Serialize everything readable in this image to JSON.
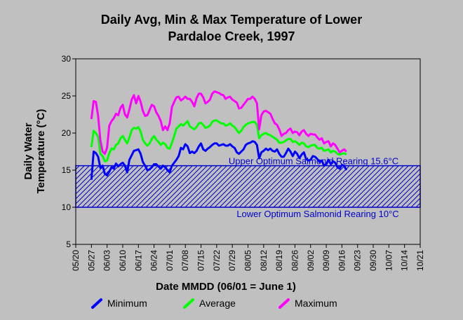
{
  "chart_data": {
    "type": "line",
    "title_line1": "Daily Avg, Min & Max Temperature of Lower",
    "title_line2": "Pardaloe Creek, 1997",
    "xlabel": "Date MMDD (06/01 = June 1)",
    "ylabel_line1": "Daily Water",
    "ylabel_line2": "Temperature (°C)",
    "ylim": [
      5,
      30
    ],
    "yticks": [
      5,
      10,
      15,
      20,
      25,
      30
    ],
    "x_range": [
      "05/20",
      "10/21"
    ],
    "xtick_labels": [
      "05/20",
      "05/27",
      "06/03",
      "06/10",
      "06/17",
      "06/24",
      "07/01",
      "07/08",
      "07/15",
      "07/22",
      "07/29",
      "08/05",
      "08/12",
      "08/19",
      "08/26",
      "09/02",
      "09/09",
      "09/16",
      "09/23",
      "09/30",
      "10/07",
      "10/14",
      "10/21"
    ],
    "grid": false,
    "band": {
      "lower": 10,
      "upper": 15.6,
      "upper_label": "Upper Optimum Salmonid Rearing 15.6°C",
      "lower_label": "Lower Optimum Salmonid Rearing 10°C",
      "color": "#0000cc"
    },
    "x": [
      "05/27",
      "05/28",
      "05/29",
      "05/30",
      "05/31",
      "06/01",
      "06/02",
      "06/03",
      "06/04",
      "06/05",
      "06/06",
      "06/07",
      "06/08",
      "06/09",
      "06/10",
      "06/11",
      "06/12",
      "06/13",
      "06/14",
      "06/15",
      "06/16",
      "06/17",
      "06/18",
      "06/19",
      "06/20",
      "06/21",
      "06/22",
      "06/23",
      "06/24",
      "06/25",
      "06/26",
      "06/27",
      "06/28",
      "06/29",
      "06/30",
      "07/01",
      "07/02",
      "07/03",
      "07/04",
      "07/05",
      "07/06",
      "07/07",
      "07/08",
      "07/09",
      "07/10",
      "07/11",
      "07/12",
      "07/13",
      "07/14",
      "07/15",
      "07/16",
      "07/17",
      "07/18",
      "07/19",
      "07/20",
      "07/21",
      "07/22",
      "07/23",
      "07/24",
      "07/25",
      "07/26",
      "07/27",
      "07/28",
      "07/29",
      "07/30",
      "07/31",
      "08/01",
      "08/02",
      "08/03",
      "08/04",
      "08/05",
      "08/06",
      "08/07",
      "08/08",
      "08/09",
      "08/10",
      "08/11",
      "08/12",
      "08/13",
      "08/14",
      "08/15",
      "08/16",
      "08/17",
      "08/18",
      "08/19",
      "08/20",
      "08/21",
      "08/22",
      "08/23",
      "08/24",
      "08/25",
      "08/26",
      "08/27",
      "08/28",
      "08/29",
      "08/30",
      "08/31",
      "09/01",
      "09/02",
      "09/03",
      "09/04",
      "09/05",
      "09/06",
      "09/07",
      "09/08",
      "09/09",
      "09/10",
      "09/11",
      "09/12",
      "09/13",
      "09/14",
      "09/15",
      "09/16",
      "09/17",
      "09/18"
    ],
    "series": [
      {
        "name": "Minimum",
        "color": "#0000ff",
        "values": [
          13.7,
          17.5,
          17.3,
          16.8,
          15.3,
          15.6,
          14.5,
          14.3,
          14.8,
          15.4,
          15.2,
          15.9,
          15.5,
          15.8,
          16.0,
          15.6,
          14.7,
          16.4,
          17.0,
          17.6,
          17.7,
          17.8,
          17.2,
          16.1,
          15.6,
          15.0,
          15.1,
          15.4,
          15.8,
          15.8,
          15.5,
          15.2,
          15.6,
          15.4,
          15.0,
          14.7,
          15.6,
          16.0,
          16.4,
          16.9,
          18.0,
          17.8,
          18.5,
          18.2,
          17.3,
          17.5,
          17.3,
          17.6,
          18.2,
          18.6,
          17.8,
          17.6,
          17.9,
          18.1,
          18.4,
          18.6,
          18.6,
          18.3,
          18.4,
          18.5,
          18.3,
          18.3,
          18.5,
          18.2,
          18.0,
          17.4,
          17.2,
          17.5,
          17.8,
          18.4,
          18.6,
          18.7,
          18.9,
          18.8,
          18.4,
          16.6,
          17.4,
          17.6,
          17.9,
          17.7,
          17.9,
          17.6,
          17.5,
          17.8,
          17.2,
          16.8,
          16.8,
          17.3,
          17.9,
          17.5,
          16.9,
          17.5,
          17.2,
          16.6,
          17.1,
          17.4,
          16.5,
          16.3,
          16.4,
          16.9,
          16.8,
          16.5,
          16.1,
          16.3,
          15.6,
          15.8,
          16.4,
          15.8,
          16.2,
          16.0,
          15.4,
          15.2,
          15.7,
          15.6,
          15.0
        ]
      },
      {
        "name": "Average",
        "color": "#00ff00",
        "values": [
          18.1,
          20.3,
          20.0,
          19.5,
          17.2,
          16.9,
          16.2,
          16.3,
          17.3,
          17.9,
          17.8,
          18.4,
          18.6,
          19.3,
          19.6,
          19.1,
          18.6,
          19.4,
          20.4,
          20.7,
          20.6,
          20.8,
          20.2,
          19.1,
          18.6,
          18.3,
          18.6,
          19.2,
          19.6,
          19.1,
          18.8,
          18.4,
          18.7,
          18.5,
          18.0,
          17.9,
          18.7,
          19.6,
          20.6,
          20.9,
          21.2,
          21.0,
          21.3,
          21.6,
          20.9,
          20.7,
          20.5,
          20.8,
          21.3,
          21.4,
          21.1,
          20.7,
          20.8,
          21.0,
          21.5,
          21.7,
          21.7,
          21.5,
          21.3,
          21.3,
          21.0,
          21.1,
          21.3,
          21.0,
          20.8,
          20.4,
          20.0,
          20.3,
          20.8,
          21.1,
          21.3,
          21.4,
          21.5,
          21.5,
          21.1,
          19.3,
          19.7,
          19.9,
          20.0,
          19.8,
          19.7,
          19.5,
          19.3,
          19.1,
          18.7,
          18.7,
          18.8,
          19.0,
          19.2,
          19.2,
          18.8,
          18.9,
          18.7,
          18.4,
          18.7,
          18.6,
          18.2,
          18.1,
          18.3,
          18.4,
          18.4,
          18.0,
          17.9,
          18.0,
          17.6,
          17.7,
          17.8,
          17.4,
          17.6,
          17.5,
          17.2,
          17.1,
          17.2,
          17.3,
          17.1
        ]
      },
      {
        "name": "Maximum",
        "color": "#ff00ff",
        "values": [
          21.9,
          24.3,
          24.2,
          22.3,
          19.0,
          17.5,
          17.2,
          18.0,
          21.0,
          21.6,
          22.0,
          22.6,
          22.4,
          23.4,
          23.8,
          22.5,
          22.1,
          23.2,
          24.5,
          25.1,
          24.0,
          25.0,
          24.2,
          23.0,
          22.3,
          22.4,
          23.1,
          23.8,
          23.6,
          22.8,
          22.3,
          21.6,
          20.4,
          20.9,
          20.4,
          21.3,
          23.5,
          24.2,
          24.8,
          24.9,
          24.4,
          24.6,
          24.9,
          24.6,
          24.6,
          24.2,
          23.6,
          24.7,
          25.3,
          25.3,
          24.8,
          24.0,
          24.2,
          24.5,
          25.3,
          25.6,
          25.5,
          25.4,
          25.2,
          25.1,
          24.6,
          24.8,
          24.9,
          24.5,
          24.3,
          24.1,
          23.3,
          23.4,
          23.8,
          24.2,
          24.6,
          24.6,
          24.9,
          24.6,
          24.0,
          20.5,
          22.4,
          22.9,
          23.0,
          22.8,
          22.6,
          21.9,
          21.3,
          21.1,
          20.5,
          19.6,
          19.9,
          20.0,
          20.4,
          20.6,
          20.0,
          20.2,
          20.1,
          19.7,
          20.2,
          20.4,
          19.9,
          19.6,
          19.9,
          19.8,
          19.8,
          19.4,
          19.1,
          19.3,
          18.6,
          18.8,
          18.9,
          18.2,
          18.6,
          18.4,
          17.9,
          17.4,
          17.6,
          17.8,
          17.5
        ]
      }
    ],
    "legend": {
      "placement": "bottom"
    }
  }
}
